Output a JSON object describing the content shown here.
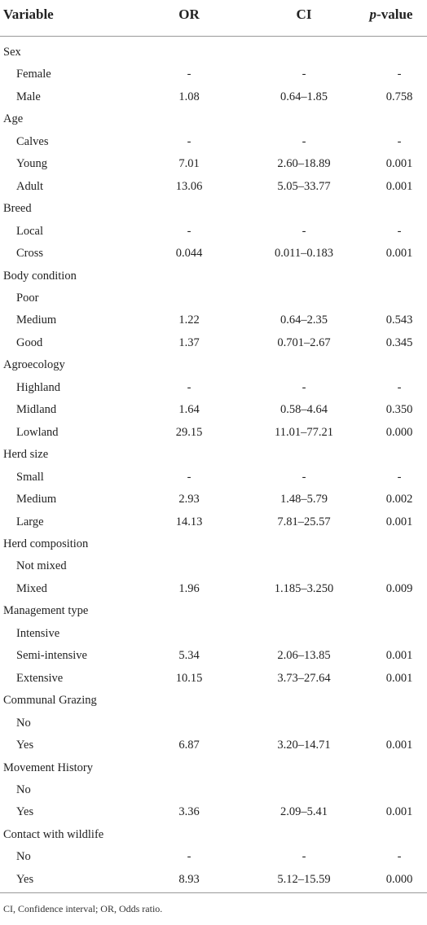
{
  "table": {
    "header": {
      "variable": "Variable",
      "or": "OR",
      "ci": "CI",
      "p_value": {
        "italic": "p",
        "rest": "-value"
      }
    },
    "groups": [
      {
        "name": "Sex",
        "rows": [
          [
            "Female",
            "-",
            "-",
            "-"
          ],
          [
            "Male",
            "1.08",
            "0.64–1.85",
            "0.758"
          ]
        ]
      },
      {
        "name": "Age",
        "rows": [
          [
            "Calves",
            "-",
            "-",
            "-"
          ],
          [
            "Young",
            "7.01",
            "2.60–18.89",
            "0.001"
          ],
          [
            "Adult",
            "13.06",
            "5.05–33.77",
            "0.001"
          ]
        ]
      },
      {
        "name": "Breed",
        "rows": [
          [
            "Local",
            "-",
            "-",
            "-"
          ],
          [
            "Cross",
            "0.044",
            "0.011–0.183",
            "0.001"
          ]
        ]
      },
      {
        "name": "Body condition",
        "rows": [
          [
            "Poor"
          ],
          [
            "Medium",
            "1.22",
            "0.64–2.35",
            "0.543"
          ],
          [
            "Good",
            "1.37",
            "0.701–2.67",
            "0.345"
          ]
        ]
      },
      {
        "name": "Agroecology",
        "rows": [
          [
            "Highland",
            "-",
            "-",
            "-"
          ],
          [
            "Midland",
            "1.64",
            "0.58–4.64",
            "0.350"
          ],
          [
            "Lowland",
            "29.15",
            "11.01–77.21",
            "0.000"
          ]
        ]
      },
      {
        "name": "Herd size",
        "rows": [
          [
            "Small",
            "-",
            "-",
            "-"
          ],
          [
            "Medium",
            "2.93",
            "1.48–5.79",
            "0.002"
          ],
          [
            "Large",
            "14.13",
            "7.81–25.57",
            "0.001"
          ]
        ]
      },
      {
        "name": "Herd composition",
        "rows": [
          [
            "Not mixed"
          ],
          [
            "Mixed",
            "1.96",
            "1.185–3.250",
            "0.009"
          ]
        ]
      },
      {
        "name": "Management type",
        "rows": [
          [
            "Intensive"
          ],
          [
            "Semi-intensive",
            "5.34",
            "2.06–13.85",
            "0.001"
          ],
          [
            "Extensive",
            "10.15",
            "3.73–27.64",
            "0.001"
          ]
        ]
      },
      {
        "name": "Communal Grazing",
        "rows": [
          [
            "No"
          ],
          [
            "Yes",
            "6.87",
            "3.20–14.71",
            "0.001"
          ]
        ]
      },
      {
        "name": "Movement History",
        "rows": [
          [
            "No"
          ],
          [
            "Yes",
            "3.36",
            "2.09–5.41",
            "0.001"
          ]
        ]
      },
      {
        "name": "Contact with wildlife",
        "rows": [
          [
            "No",
            "-",
            "-",
            "-"
          ],
          [
            "Yes",
            "8.93",
            "5.12–15.59",
            "0.000"
          ]
        ]
      }
    ],
    "footnote": "CI, Confidence interval; OR, Odds ratio."
  }
}
